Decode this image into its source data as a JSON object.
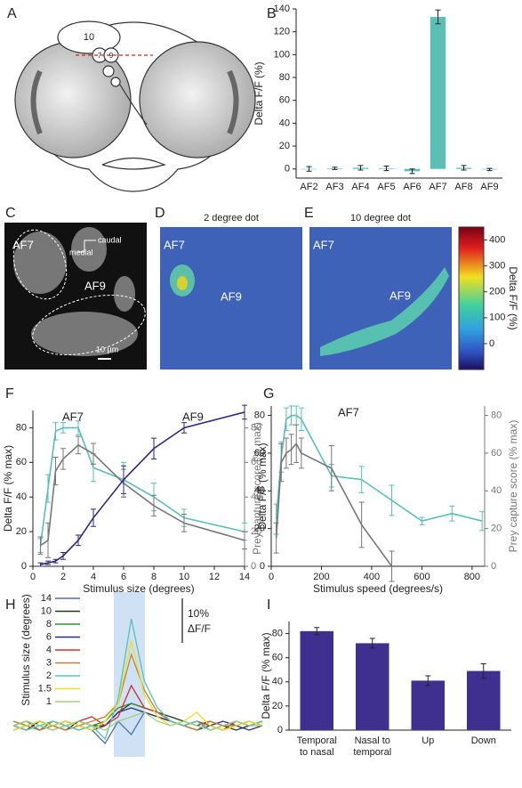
{
  "panel_labels": [
    "A",
    "B",
    "C",
    "D",
    "E",
    "F",
    "G",
    "H",
    "I"
  ],
  "diagram": {
    "labels": [
      "10",
      "7",
      "9"
    ]
  },
  "images": [
    {
      "annotations": [
        "AF7",
        "AF9",
        "caudal",
        "medial",
        "10 µm"
      ]
    },
    {
      "title": "2 degree dot",
      "annotations": [
        "AF7",
        "AF9"
      ]
    },
    {
      "title": "10 degree dot",
      "annotations": [
        "AF7",
        "AF9"
      ],
      "colorbar": {
        "lim": [
          -100,
          450
        ],
        "ticks": [
          0,
          100,
          200,
          300,
          400
        ],
        "label": "Delta F/F (%)"
      }
    }
  ],
  "chart_data": [
    {
      "type": "bar",
      "ylabel": "Delta F/F (%)",
      "color": "#5bbfb5",
      "categories": [
        "AF2",
        "AF3",
        "AF4",
        "AF5",
        "AF6",
        "AF7",
        "AF8",
        "AF9"
      ],
      "values": [
        0,
        0.5,
        1,
        0.5,
        -2,
        133,
        1,
        -0.5
      ],
      "errors": [
        2,
        1,
        2,
        2,
        2,
        6,
        2,
        1
      ],
      "ylim": [
        -8,
        140
      ],
      "yticks": [
        0,
        20,
        40,
        60,
        80,
        100,
        120,
        140
      ]
    },
    {
      "type": "line",
      "xlabel": "Stimulus size (degrees)",
      "ylabel": "Delta F/F (% max)",
      "y2label": "Prey capture score (% max)",
      "xlim": [
        0,
        14
      ],
      "xticks": [
        0,
        2,
        4,
        6,
        8,
        10,
        12,
        14
      ],
      "ylim": [
        0,
        90
      ],
      "yticks": [
        0,
        20,
        40,
        60,
        80
      ],
      "y2lim": [
        0,
        90
      ],
      "y2ticks": [
        0,
        20,
        40,
        60,
        80
      ],
      "series": [
        {
          "name": "AF7",
          "color": "#5bbfb5",
          "x": [
            0.5,
            1,
            1.5,
            2,
            3,
            4,
            6,
            8,
            10,
            14
          ],
          "values": [
            12,
            45,
            78,
            80,
            80,
            57,
            50,
            40,
            28,
            20
          ],
          "errors": [
            4,
            8,
            5,
            3,
            4,
            8,
            10,
            8,
            5,
            5
          ]
        },
        {
          "color": "#777777",
          "axis": "y2",
          "x": [
            0.5,
            1,
            1.5,
            2,
            3,
            4,
            6,
            8,
            10,
            14
          ],
          "values": [
            12,
            15,
            55,
            62,
            70,
            65,
            48,
            35,
            25,
            15
          ],
          "errors": [
            5,
            10,
            8,
            6,
            5,
            6,
            8,
            6,
            5,
            5
          ]
        },
        {
          "name": "AF9",
          "color": "#2e2a7f",
          "x": [
            0.5,
            1,
            1.5,
            2,
            3,
            4,
            6,
            8,
            10,
            14
          ],
          "values": [
            1,
            2,
            3,
            6,
            15,
            28,
            50,
            68,
            80,
            89
          ],
          "errors": [
            1,
            1,
            1,
            2,
            3,
            5,
            8,
            6,
            3,
            4
          ]
        }
      ]
    },
    {
      "type": "line",
      "xlabel": "Stimulus speed (degrees/s)",
      "ylabel": "Delta F/F (% max)",
      "y2label": "Prey capture score (% max)",
      "xlim": [
        0,
        850
      ],
      "xticks": [
        0,
        200,
        400,
        600,
        800
      ],
      "ylim": [
        0,
        85
      ],
      "yticks": [
        0,
        20,
        40,
        60,
        80
      ],
      "y2lim": [
        0,
        85
      ],
      "y2ticks": [
        0,
        20,
        40,
        60,
        80
      ],
      "series": [
        {
          "name": "AF7",
          "color": "#5bbfb5",
          "x": [
            20,
            40,
            60,
            80,
            100,
            120,
            240,
            360,
            480,
            600,
            720,
            840
          ],
          "values": [
            25,
            58,
            78,
            80,
            80,
            78,
            48,
            46,
            35,
            24,
            28,
            24
          ],
          "errors": [
            8,
            8,
            6,
            5,
            5,
            6,
            6,
            7,
            8,
            2,
            4,
            5
          ]
        },
        {
          "color": "#777777",
          "axis": "y2",
          "x": [
            20,
            40,
            60,
            80,
            100,
            120,
            240,
            360,
            480
          ],
          "values": [
            15,
            55,
            60,
            62,
            65,
            60,
            52,
            22,
            0
          ],
          "errors": [
            8,
            10,
            8,
            8,
            10,
            8,
            12,
            12,
            8
          ]
        }
      ]
    },
    {
      "type": "traces",
      "legend_title": "Stimulus size (degrees)",
      "scale_bar": {
        "value": 10,
        "label": "10%",
        "sublabel": "ΔF/F"
      },
      "series": [
        {
          "name": "14",
          "color": "#4a6fb5",
          "values": [
            0,
            1,
            -1,
            0,
            1,
            0,
            -1,
            -4,
            1,
            -2,
            3,
            2,
            1,
            0,
            1,
            -1,
            0,
            1,
            0,
            1
          ]
        },
        {
          "name": "10",
          "color": "#1a3a1a",
          "values": [
            0,
            -1,
            1,
            0,
            -1,
            1,
            0,
            0,
            3,
            5,
            4,
            3,
            2,
            1,
            0,
            1,
            0,
            -1,
            0,
            1
          ]
        },
        {
          "name": "8",
          "color": "#3a8a3a",
          "values": [
            1,
            0,
            -1,
            1,
            0,
            -1,
            0,
            1,
            4,
            5,
            4,
            3,
            1,
            0,
            1,
            0,
            -1,
            0,
            1,
            0
          ]
        },
        {
          "name": "6",
          "color": "#2a2a80",
          "values": [
            -1,
            0,
            1,
            0,
            1,
            0,
            -1,
            0,
            3,
            4,
            3,
            2,
            1,
            0,
            -1,
            0,
            1,
            0,
            -1,
            0
          ]
        },
        {
          "name": "4",
          "color": "#d03030",
          "values": [
            0,
            1,
            0,
            -1,
            0,
            1,
            2,
            0,
            2,
            9,
            4,
            3,
            1,
            0,
            1,
            0,
            -1,
            1,
            0,
            0
          ]
        },
        {
          "name": "3",
          "color": "#c08040",
          "values": [
            1,
            0,
            -1,
            0,
            -1,
            0,
            1,
            2,
            5,
            16,
            8,
            3,
            1,
            0,
            -1,
            1,
            0,
            0,
            1,
            0
          ]
        },
        {
          "name": "2",
          "color": "#5bbfb5",
          "values": [
            0,
            -1,
            0,
            1,
            0,
            -1,
            0,
            -3,
            6,
            24,
            10,
            4,
            1,
            0,
            1,
            -1,
            0,
            1,
            0,
            1
          ]
        },
        {
          "name": "1.5",
          "color": "#e8e020",
          "values": [
            -1,
            0,
            1,
            0,
            1,
            0,
            -1,
            1,
            5,
            19,
            7,
            2,
            0,
            1,
            3,
            0,
            -1,
            0,
            1,
            0
          ]
        },
        {
          "name": "1",
          "color": "#a0d080",
          "values": [
            0,
            1,
            0,
            -1,
            0,
            1,
            0,
            -1,
            1,
            2,
            3,
            1,
            0,
            1,
            0,
            -1,
            0,
            1,
            0,
            0
          ]
        }
      ]
    },
    {
      "type": "bar",
      "ylabel": "Delta F/F (% max)",
      "color": "#3f2f8f",
      "categories": [
        "Temporal\nto nasal",
        "Nasal to\ntemporal",
        "Up",
        "Down"
      ],
      "values": [
        82,
        72,
        41,
        49
      ],
      "errors": [
        3,
        4,
        4,
        6
      ],
      "ylim": [
        0,
        90
      ],
      "yticks": [
        0,
        20,
        40,
        60,
        80
      ]
    }
  ]
}
